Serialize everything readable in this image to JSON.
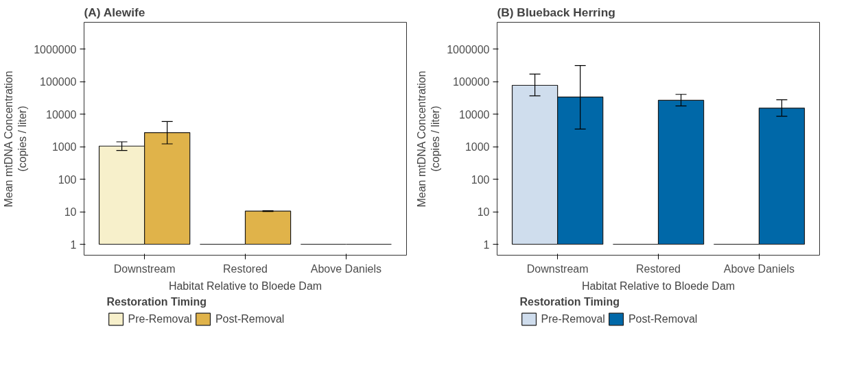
{
  "chart_data": [
    {
      "type": "bar",
      "title": "(A) Alewife",
      "xlabel": "Habitat Relative to Bloede Dam",
      "ylabel": "Mean mtDNA Concentration\n(copies / liter)",
      "legend_title": "Restoration Timing",
      "legend": "bottom",
      "log": "y",
      "grid": false,
      "categories": [
        "Downstream",
        "Restored",
        "Above Daniels"
      ],
      "ylim": [
        0.46,
        6800000
      ],
      "yticks": [
        1,
        10,
        100,
        1000,
        10000,
        100000,
        1000000
      ],
      "series": [
        {
          "name": "Pre-Removal",
          "color": "#f7f0cb",
          "colors": [
            "#f7f0cb",
            "#1a1a1a",
            "#1a1a1a"
          ],
          "base": [
            1,
            1,
            1
          ],
          "values": [
            1049,
            0,
            0
          ],
          "errors": [
            [
              770,
              1420
            ],
            null,
            null
          ]
        },
        {
          "name": "Post-Removal",
          "color": "#e0b34a",
          "colors": [
            "#e0b34a",
            "#e0b34a",
            "#1a1a1a"
          ],
          "base": [
            1,
            1,
            1
          ],
          "values": [
            2729,
            9.5,
            0
          ],
          "errors": [
            [
              1230,
              6000
            ],
            [
              10.2,
              10.8
            ],
            null
          ]
        }
      ]
    },
    {
      "type": "bar",
      "title": "(B) Blueback Herring",
      "xlabel": "Habitat Relative to Bloede Dam",
      "ylabel": "Mean mtDNA Concentration\n(copies / liter)",
      "legend_title": "Restoration Timing",
      "legend": "bottom",
      "log": "y",
      "grid": false,
      "categories": [
        "Downstream",
        "Restored",
        "Above Daniels"
      ],
      "ylim": [
        0.46,
        6800000
      ],
      "yticks": [
        1,
        10,
        100,
        1000,
        10000,
        100000,
        1000000
      ],
      "series": [
        {
          "name": "Pre-Removal",
          "color": "#cfdded",
          "colors": [
            "#cfdded",
            "#1a1a1a",
            "#1a1a1a"
          ],
          "base": [
            1,
            1,
            1
          ],
          "values": [
            77999,
            0,
            0
          ],
          "errors": [
            [
              37000,
              173000
            ],
            null,
            null
          ]
        },
        {
          "name": "Post-Removal",
          "color": "#0068a8",
          "base": [
            1,
            1,
            1
          ],
          "values": [
            33999,
            26999,
            15499
          ],
          "errors": [
            [
              3500,
              316000
            ],
            [
              18000,
              41000
            ],
            [
              8700,
              28000
            ]
          ]
        }
      ]
    }
  ]
}
